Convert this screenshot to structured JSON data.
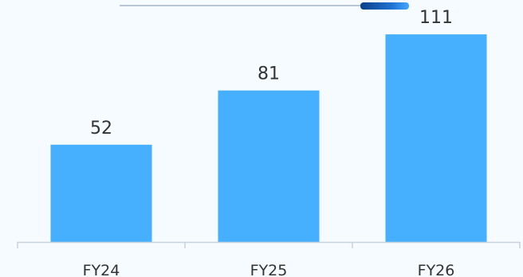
{
  "colors": {
    "background": "#f5fbff",
    "bar": "#46b0ff",
    "axis": "#c9d3de",
    "text": "#333333"
  },
  "chart_data": {
    "type": "bar",
    "categories": [
      "FY24",
      "FY25",
      "FY26"
    ],
    "values": [
      52,
      81,
      111
    ],
    "data_labels": [
      "52",
      "81",
      "111"
    ],
    "ylim": [
      0,
      120
    ],
    "grid": false,
    "legend": "none",
    "title": "",
    "xlabel": "",
    "ylabel": ""
  },
  "scrollbar": {
    "thumb_position": 0.83
  }
}
